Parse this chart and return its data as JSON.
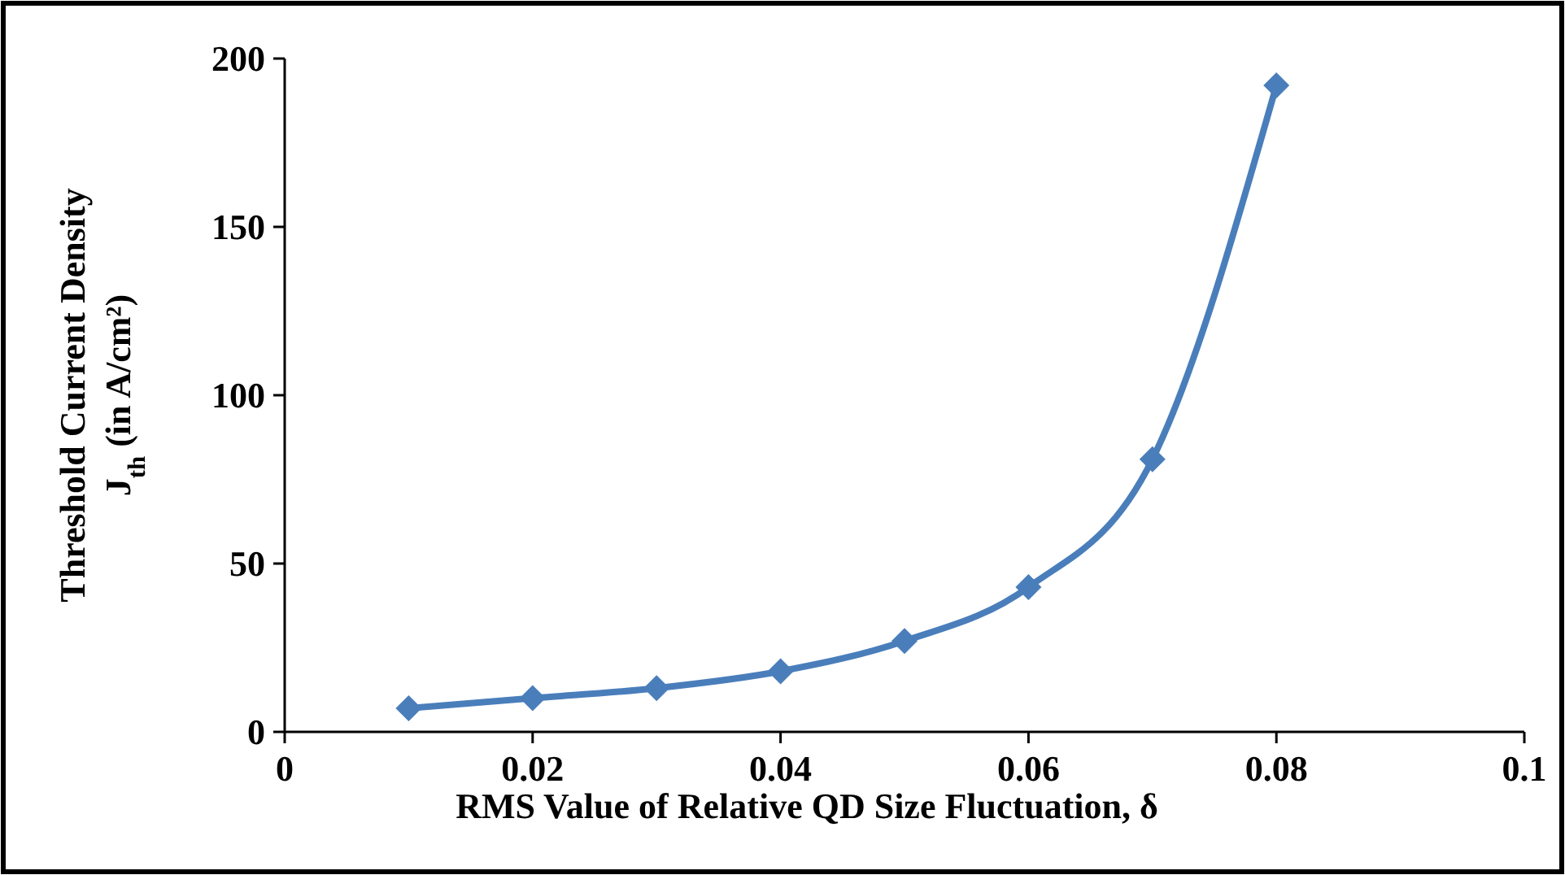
{
  "chart_data": {
    "type": "line",
    "xlabel": "RMS Value of Relative QD Size Fluctuation, δ",
    "ylabel": "Threshold Current Density\nJ$_{th}$ (in A/cm²)",
    "x": [
      0.01,
      0.02,
      0.03,
      0.04,
      0.05,
      0.06,
      0.07,
      0.08
    ],
    "series": [
      {
        "color": "#4a7ebb",
        "values": [
          7,
          10,
          13,
          18,
          27,
          43,
          81,
          192
        ]
      }
    ],
    "xlim": [
      0,
      0.1
    ],
    "xticks": [
      0,
      0.02,
      0.04,
      0.06,
      0.08,
      0.1
    ],
    "ylim": [
      0,
      200
    ],
    "yticks": [
      0,
      50,
      100,
      150,
      200
    ],
    "marker": "diamond",
    "line_style": "solid"
  }
}
